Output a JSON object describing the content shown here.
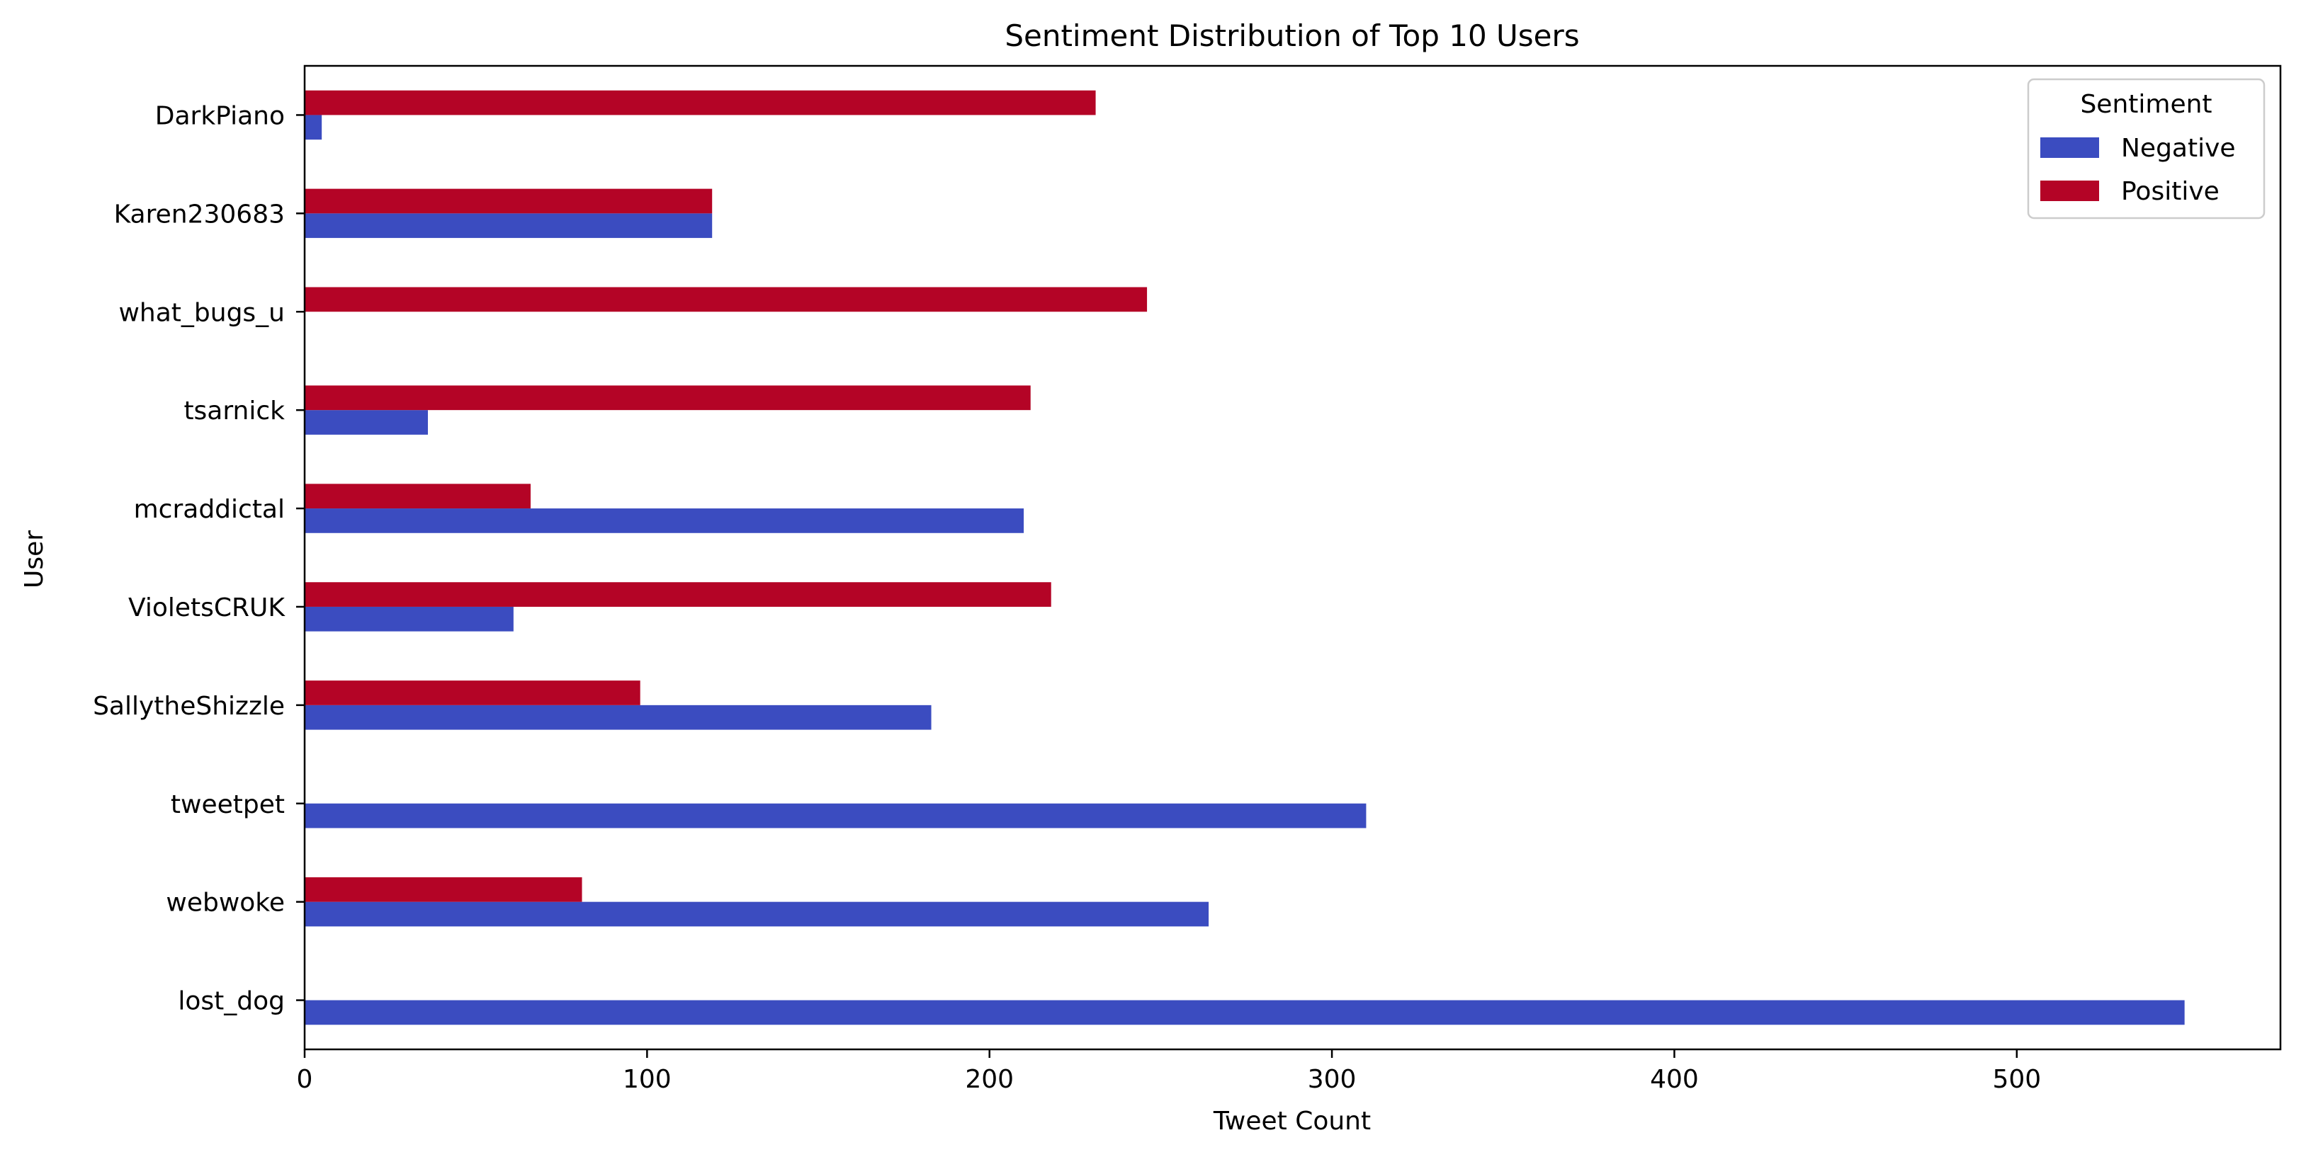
{
  "chart_data": {
    "type": "bar",
    "orientation": "horizontal",
    "title": "Sentiment Distribution of Top 10 Users",
    "xlabel": "Tweet Count",
    "ylabel": "User",
    "categories": [
      "lost_dog",
      "webwoke",
      "tweetpet",
      "SallytheShizzle",
      "VioletsCRUK",
      "mcraddictal",
      "tsarnick",
      "what_bugs_u",
      "Karen230683",
      "DarkPiano"
    ],
    "series": [
      {
        "name": "Negative",
        "color": "#3b4cc0",
        "values": [
          549,
          264,
          310,
          183,
          61,
          210,
          36,
          0,
          119,
          5
        ]
      },
      {
        "name": "Positive",
        "color": "#b40426",
        "values": [
          0,
          81,
          0,
          98,
          218,
          66,
          212,
          246,
          119,
          231
        ]
      }
    ],
    "xlim": [
      0,
      577
    ],
    "xticks": [
      0,
      100,
      200,
      300,
      400,
      500
    ],
    "grid": false,
    "legend": {
      "title": "Sentiment",
      "placement": "top-right"
    }
  }
}
